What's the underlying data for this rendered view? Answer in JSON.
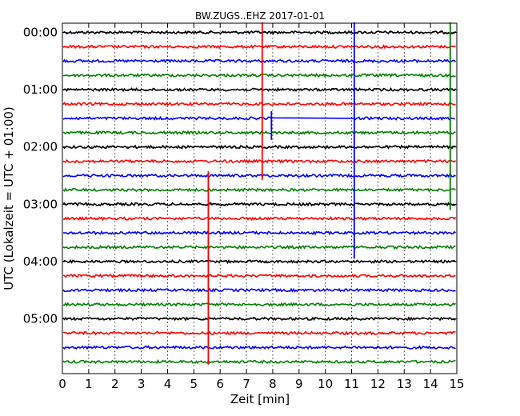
{
  "chart_data": {
    "type": "line",
    "title": "BW.ZUGS..EHZ 2017-01-01",
    "xlabel": "Zeit  [min]",
    "ylabel": "UTC (Lokalzeit = UTC + 01:00)",
    "xlim": [
      0,
      15
    ],
    "xticks": [
      "0",
      "1",
      "2",
      "3",
      "4",
      "5",
      "6",
      "7",
      "8",
      "9",
      "10",
      "11",
      "12",
      "13",
      "14",
      "15"
    ],
    "yticks": [
      "00:00",
      "01:00",
      "02:00",
      "03:00",
      "04:00",
      "05:00"
    ],
    "grid": true,
    "trace_colors": [
      "#000000",
      "#ff0000",
      "#0000ff",
      "#008000"
    ],
    "traces": [
      {
        "start": "00:00"
      },
      {
        "start": "00:15"
      },
      {
        "start": "00:30"
      },
      {
        "start": "00:45"
      },
      {
        "start": "01:00"
      },
      {
        "start": "01:15"
      },
      {
        "start": "01:30"
      },
      {
        "start": "01:45"
      },
      {
        "start": "02:00"
      },
      {
        "start": "02:15"
      },
      {
        "start": "02:30"
      },
      {
        "start": "02:45"
      },
      {
        "start": "03:00"
      },
      {
        "start": "03:15"
      },
      {
        "start": "03:30"
      },
      {
        "start": "03:45"
      },
      {
        "start": "04:00"
      },
      {
        "start": "04:15"
      },
      {
        "start": "04:30"
      },
      {
        "start": "04:45"
      },
      {
        "start": "05:00"
      },
      {
        "start": "05:15"
      },
      {
        "start": "05:30"
      },
      {
        "start": "05:45"
      }
    ],
    "events": [
      {
        "trace_start": "00:00",
        "minute": 7.6,
        "color": "#ff0000",
        "extent_traces": [
          -0.7,
          10.3
        ]
      },
      {
        "trace_start": "00:00",
        "minute": 11.1,
        "color": "#0000ff",
        "extent_traces": [
          -0.7,
          15.8
        ]
      },
      {
        "trace_start": "00:00",
        "minute": 14.75,
        "color": "#008000",
        "extent_traces": [
          -0.7,
          12.4
        ]
      },
      {
        "trace_start": "01:15",
        "minute": 7.95,
        "color": "#0000ff",
        "extent_traces": [
          5.5,
          7.5
        ]
      },
      {
        "trace_start": "02:30",
        "minute": 5.55,
        "color": "#ff0000",
        "extent_traces": [
          9.7,
          23.2
        ]
      }
    ],
    "gap": {
      "trace_start": "01:30",
      "from_minute": 7.95,
      "to_minute": 11.1,
      "color": "#0000ff"
    }
  }
}
